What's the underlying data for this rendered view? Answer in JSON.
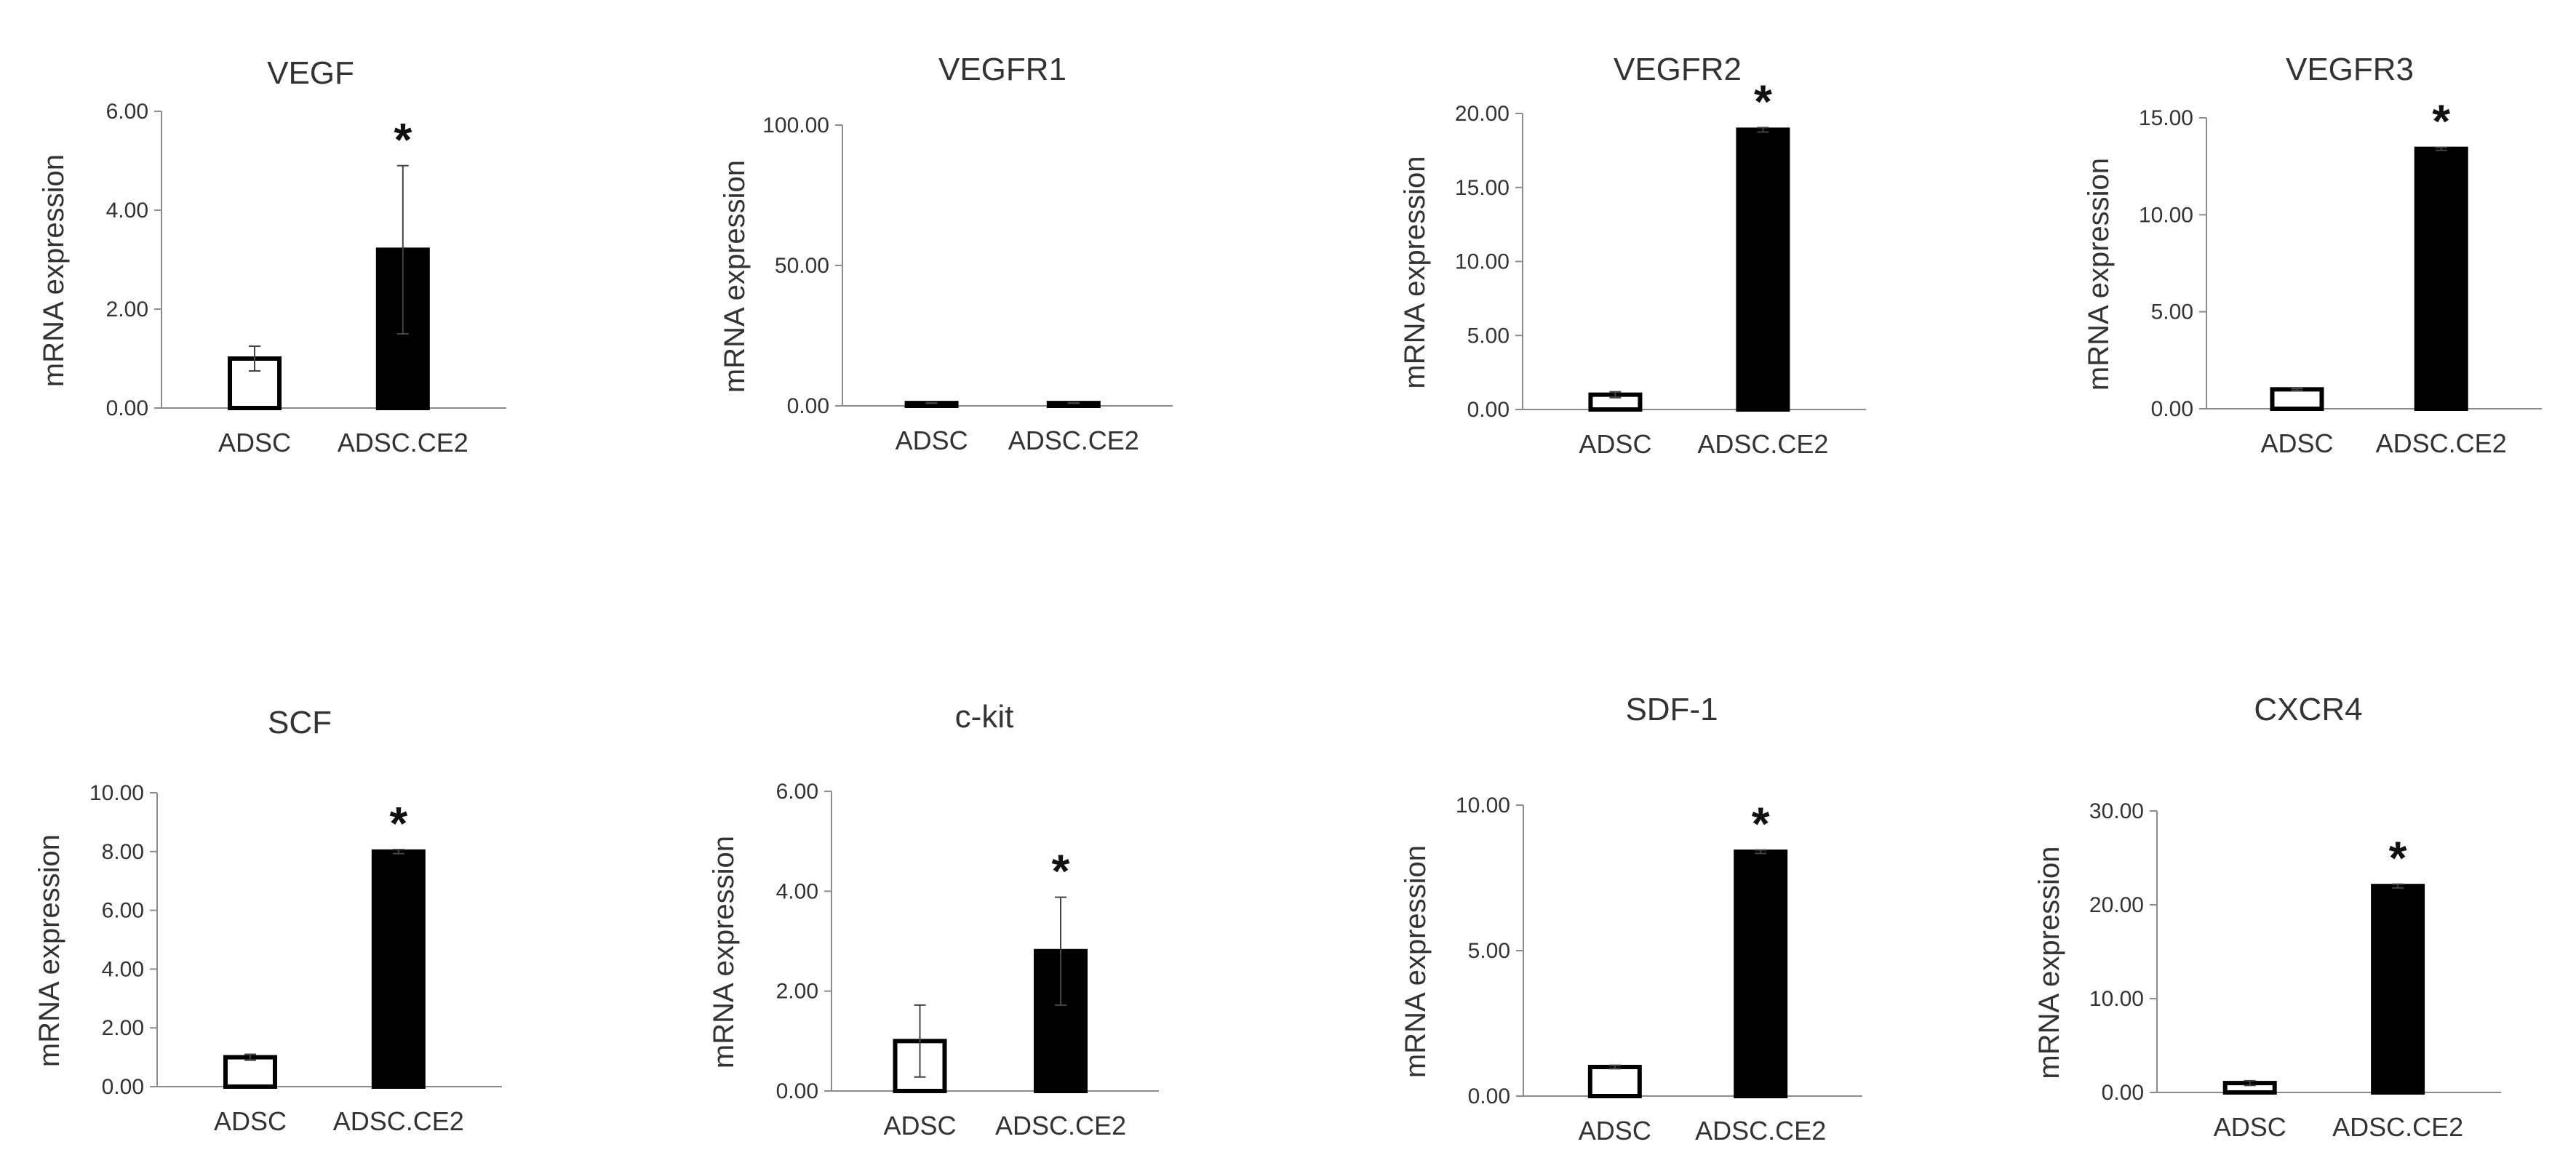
{
  "chart_data": [
    {
      "type": "bar",
      "title": "VEGF",
      "categories": [
        "ADSC",
        "ADSC.CE2"
      ],
      "values": [
        1.0,
        3.2
      ],
      "errors": [
        0.25,
        1.7
      ],
      "significance": [
        "",
        "*"
      ],
      "ylabel": "mRNA expression",
      "ylim": [
        0,
        6
      ],
      "yticks": [
        "0.00",
        "2.00",
        "4.00",
        "6.00"
      ]
    },
    {
      "type": "bar",
      "title": "VEGFR1",
      "categories": [
        "ADSC",
        "ADSC.CE2"
      ],
      "values": [
        1.0,
        1.0
      ],
      "errors": [
        0.1,
        0.1
      ],
      "significance": [
        "",
        ""
      ],
      "ylabel": "mRNA expression",
      "ylim": [
        0,
        100
      ],
      "yticks": [
        "0.00",
        "50.00",
        "100.00"
      ]
    },
    {
      "type": "bar",
      "title": "VEGFR2",
      "categories": [
        "ADSC",
        "ADSC.CE2"
      ],
      "values": [
        1.0,
        18.9
      ],
      "errors": [
        0.2,
        0.15
      ],
      "significance": [
        "",
        "*"
      ],
      "ylabel": "mRNA expression",
      "ylim": [
        0,
        20
      ],
      "yticks": [
        "0.00",
        "5.00",
        "10.00",
        "15.00",
        "20.00"
      ]
    },
    {
      "type": "bar",
      "title": "VEGFR3",
      "categories": [
        "ADSC",
        "ADSC.CE2"
      ],
      "values": [
        1.0,
        13.4
      ],
      "errors": [
        0.05,
        0.08
      ],
      "significance": [
        "",
        "*"
      ],
      "ylabel": "mRNA expression",
      "ylim": [
        0,
        15
      ],
      "yticks": [
        "0.00",
        "5.00",
        "10.00",
        "15.00"
      ]
    },
    {
      "type": "bar",
      "title": "SCF",
      "categories": [
        "ADSC",
        "ADSC.CE2"
      ],
      "values": [
        1.0,
        8.0
      ],
      "errors": [
        0.1,
        0.07
      ],
      "significance": [
        "",
        "*"
      ],
      "ylabel": "mRNA expression",
      "ylim": [
        0,
        10
      ],
      "yticks": [
        "0.00",
        "2.00",
        "4.00",
        "6.00",
        "8.00",
        "10.00"
      ]
    },
    {
      "type": "bar",
      "title": "c-kit",
      "categories": [
        "ADSC",
        "ADSC.CE2"
      ],
      "values": [
        1.0,
        2.8
      ],
      "errors": [
        0.72,
        1.08
      ],
      "significance": [
        "",
        "*"
      ],
      "ylabel": "mRNA expression",
      "ylim": [
        0,
        6
      ],
      "yticks": [
        "0.00",
        "2.00",
        "4.00",
        "6.00"
      ]
    },
    {
      "type": "bar",
      "title": "SDF-1",
      "categories": [
        "ADSC",
        "ADSC.CE2"
      ],
      "values": [
        1.0,
        8.4
      ],
      "errors": [
        0.06,
        0.06
      ],
      "significance": [
        "",
        "*"
      ],
      "ylabel": "mRNA expression",
      "ylim": [
        0,
        10
      ],
      "yticks": [
        "0.00",
        "5.00",
        "10.00"
      ]
    },
    {
      "type": "bar",
      "title": "CXCR4",
      "categories": [
        "ADSC",
        "ADSC.CE2"
      ],
      "values": [
        1.0,
        22.0
      ],
      "errors": [
        0.25,
        0.2
      ],
      "significance": [
        "",
        "*"
      ],
      "ylabel": "mRNA expression",
      "ylim": [
        0,
        30
      ],
      "yticks": [
        "0.00",
        "10.00",
        "20.00",
        "30.00"
      ]
    }
  ],
  "colors": {
    "axis": "#8c8c8c",
    "text": "#333333",
    "bar_adsc_fill": "#ffffff",
    "bar_ce2_fill": "#000000",
    "bar_stroke": "#000000",
    "error": "#444444"
  }
}
